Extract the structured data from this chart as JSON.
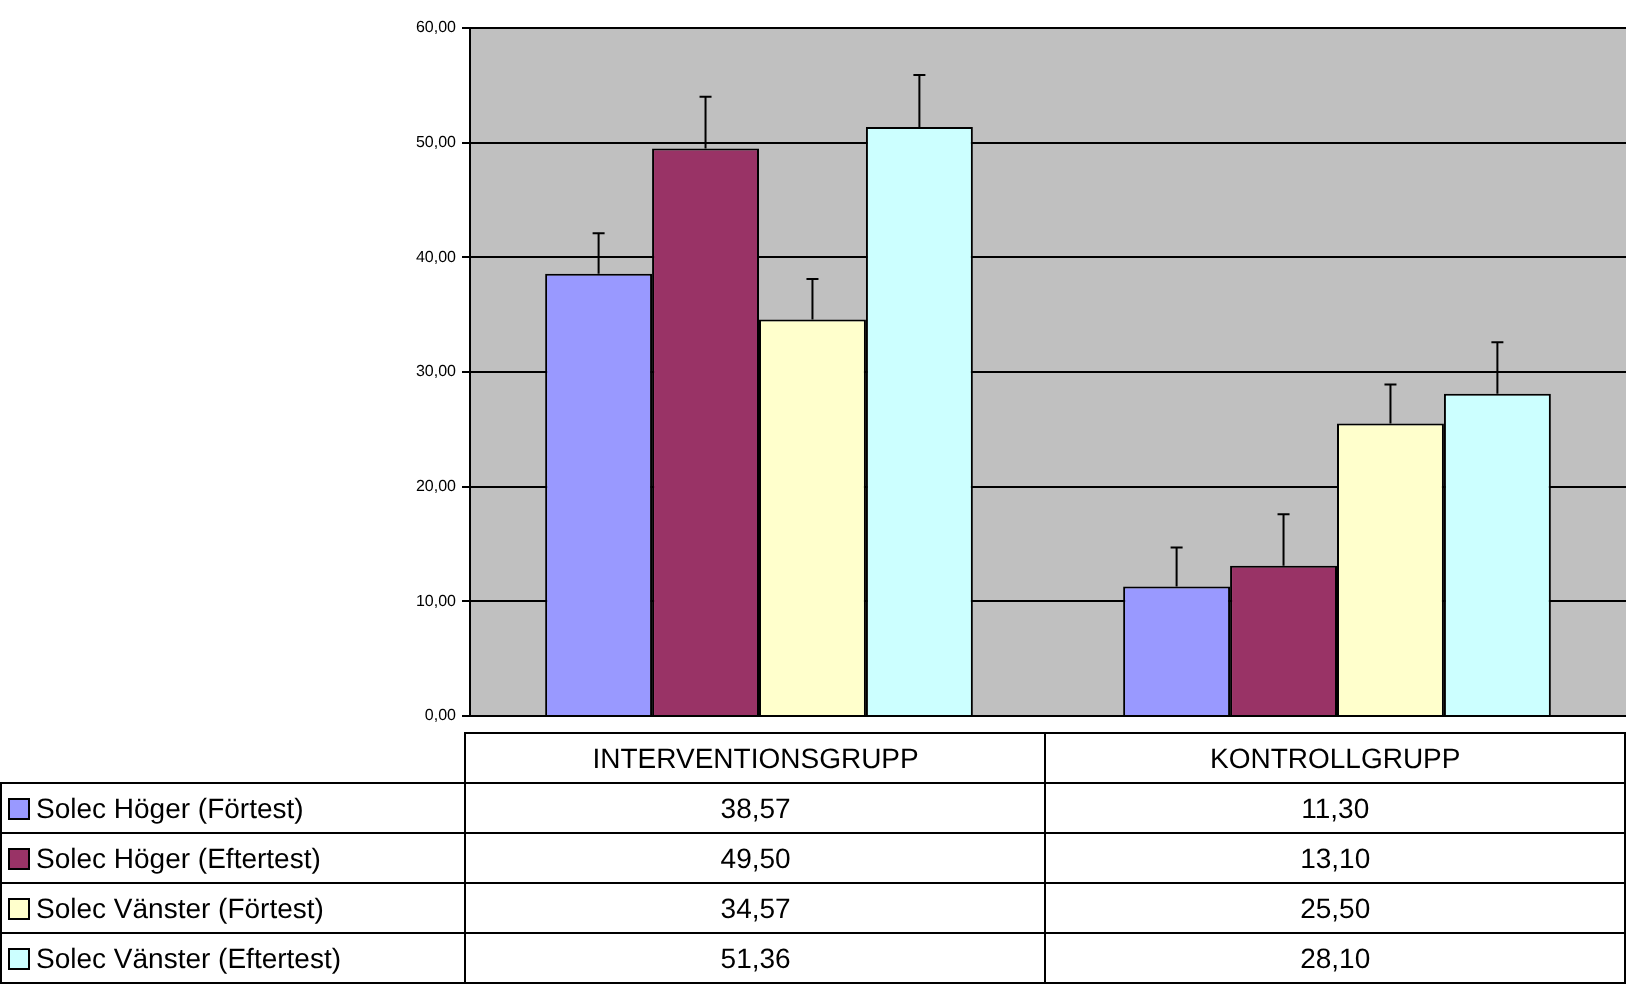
{
  "chart_data": {
    "type": "bar",
    "categories": [
      "INTERVENTIONSGRUPP",
      "KONTROLLGRUPP"
    ],
    "series": [
      {
        "name": "Solec Höger (Förtest)",
        "color": "#9999ff",
        "values": [
          38.57,
          11.3
        ],
        "value_labels": [
          "38,57",
          "11,30"
        ],
        "errors": [
          [
            38.57,
            42.1
          ],
          [
            11.3,
            14.7
          ]
        ]
      },
      {
        "name": "Solec Höger (Eftertest)",
        "color": "#993366",
        "values": [
          49.5,
          13.1
        ],
        "value_labels": [
          "49,50",
          "13,10"
        ],
        "errors": [
          [
            49.5,
            54.0
          ],
          [
            13.1,
            17.6
          ]
        ]
      },
      {
        "name": "Solec Vänster (Förtest)",
        "color": "#ffffcc",
        "values": [
          34.57,
          25.5
        ],
        "value_labels": [
          "34,57",
          "25,50"
        ],
        "errors": [
          [
            34.57,
            38.1
          ],
          [
            25.5,
            28.9
          ]
        ]
      },
      {
        "name": "Solec Vänster (Eftertest)",
        "color": "#ccffff",
        "values": [
          51.36,
          28.1
        ],
        "value_labels": [
          "51,36",
          "28,10"
        ],
        "errors": [
          [
            51.36,
            55.9
          ],
          [
            28.1,
            32.6
          ]
        ]
      }
    ],
    "ylim": [
      0,
      60
    ],
    "yticks": [
      {
        "value": 0,
        "label": "0,00"
      },
      {
        "value": 10,
        "label": "10,00"
      },
      {
        "value": 20,
        "label": "20,00"
      },
      {
        "value": 30,
        "label": "30,00"
      },
      {
        "value": 40,
        "label": "40,00"
      },
      {
        "value": 50,
        "label": "50,00"
      },
      {
        "value": 60,
        "label": "60,00"
      }
    ],
    "grid": "y",
    "legend": "bottom"
  }
}
